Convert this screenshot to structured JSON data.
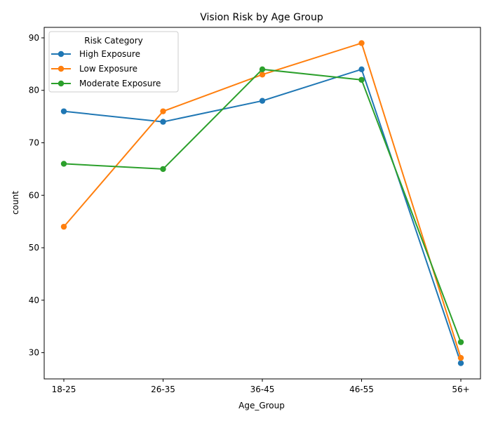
{
  "chart_data": {
    "type": "line",
    "title": "Vision Risk by Age Group",
    "xlabel": "Age_Group",
    "ylabel": "count",
    "categories": [
      "18-25",
      "26-35",
      "36-45",
      "46-55",
      "56+"
    ],
    "ylim": [
      25,
      92
    ],
    "yticks": [
      30,
      40,
      50,
      60,
      70,
      80,
      90
    ],
    "grid": false,
    "legend": {
      "title": "Risk Category",
      "placement": "top-left"
    },
    "series": [
      {
        "name": "High Exposure",
        "color": "#1f77b4",
        "values": [
          76,
          74,
          78,
          84,
          28
        ]
      },
      {
        "name": "Low Exposure",
        "color": "#ff7f0e",
        "values": [
          54,
          76,
          83,
          89,
          29
        ]
      },
      {
        "name": "Moderate Exposure",
        "color": "#2ca02c",
        "values": [
          66,
          65,
          84,
          82,
          32
        ]
      }
    ]
  }
}
